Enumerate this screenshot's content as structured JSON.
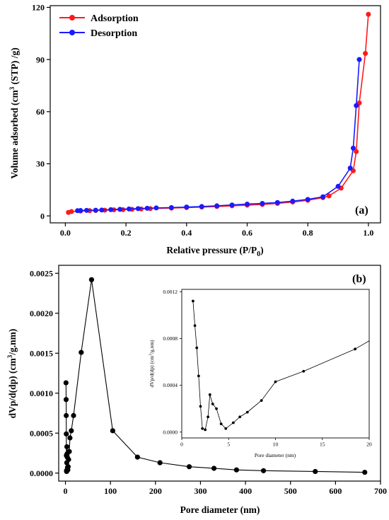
{
  "colors": {
    "adsorption": "#ff1a1a",
    "desorption": "#1a1aff",
    "psd": "#000000"
  },
  "chart_data": [
    {
      "type": "line",
      "panel_label": "(a)",
      "xlabel": "Relative pressure (P/P",
      "xlabel_sub": "0",
      "xlabel_end": ")",
      "ylabel_pre": "Volume adsorbed (cm",
      "ylabel_sup": "3",
      "ylabel_post": " (STP) /g)",
      "xlim": [
        -0.05,
        1.04
      ],
      "ylim": [
        -4,
        121
      ],
      "xticks": [
        0.0,
        0.2,
        0.4,
        0.6,
        0.8,
        1.0
      ],
      "xtick_labels": [
        "0.0",
        "0.2",
        "0.4",
        "0.6",
        "0.8",
        "1.0"
      ],
      "yticks": [
        0,
        30,
        60,
        90,
        120
      ],
      "ytick_labels": [
        "0",
        "30",
        "60",
        "90",
        "120"
      ],
      "legend": "top-left",
      "series": [
        {
          "name": "Adsorption",
          "color": "#ff1a1a",
          "x": [
            0.01,
            0.02,
            0.05,
            0.08,
            0.1,
            0.13,
            0.16,
            0.19,
            0.22,
            0.25,
            0.28,
            0.35,
            0.4,
            0.45,
            0.5,
            0.55,
            0.6,
            0.65,
            0.7,
            0.75,
            0.8,
            0.85,
            0.87,
            0.91,
            0.95,
            0.96,
            0.97,
            0.99,
            1.0
          ],
          "y": [
            2.0,
            2.5,
            2.8,
            3.0,
            3.1,
            3.3,
            3.5,
            3.6,
            3.8,
            4.0,
            4.2,
            4.5,
            4.8,
            5.1,
            5.4,
            5.8,
            6.2,
            6.6,
            7.2,
            8.0,
            9.0,
            10.5,
            11.5,
            16.0,
            26.0,
            37.0,
            65.0,
            93.5,
            116.0
          ]
        },
        {
          "name": "Desorption",
          "color": "#1a1aff",
          "x": [
            0.97,
            0.96,
            0.95,
            0.94,
            0.9,
            0.85,
            0.8,
            0.75,
            0.7,
            0.65,
            0.6,
            0.55,
            0.5,
            0.45,
            0.4,
            0.35,
            0.3,
            0.27,
            0.24,
            0.21,
            0.18,
            0.15,
            0.12,
            0.1,
            0.07,
            0.05,
            0.04
          ],
          "y": [
            90.0,
            63.5,
            39.0,
            27.5,
            17.0,
            11.0,
            9.5,
            8.5,
            7.7,
            7.2,
            6.8,
            6.3,
            5.8,
            5.4,
            5.1,
            4.8,
            4.6,
            4.4,
            4.2,
            4.0,
            3.8,
            3.6,
            3.4,
            3.3,
            3.2,
            3.1,
            3.0
          ]
        }
      ]
    },
    {
      "type": "line",
      "panel_label": "(b)",
      "xlabel": "Pore diameter (nm)",
      "ylabel_pre": "dVp/d(dp) (cm",
      "ylabel_sup": "3",
      "ylabel_post": "/g.nm)",
      "xlim": [
        -15,
        700
      ],
      "ylim": [
        -0.0001,
        0.0026
      ],
      "xticks": [
        0,
        100,
        200,
        300,
        400,
        500,
        600,
        700
      ],
      "xtick_labels": [
        "0",
        "100",
        "200",
        "300",
        "400",
        "500",
        "600",
        "700"
      ],
      "yticks": [
        0.0,
        0.0005,
        0.001,
        0.0015,
        0.002,
        0.0025
      ],
      "ytick_labels": [
        "0.0000",
        "0.0005",
        "0.0010",
        "0.0015",
        "0.0020",
        "0.0025"
      ],
      "series": [
        {
          "color": "#000000",
          "x": [
            1.2,
            1.5,
            1.7,
            1.9,
            2.1,
            2.3,
            2.6,
            2.9,
            3.2,
            3.5,
            4.0,
            4.5,
            5.2,
            6.0,
            7.0,
            8.5,
            10.0,
            13.0,
            18.0,
            35.0,
            58.0,
            105.0,
            160.0,
            210.0,
            275.0,
            330.0,
            380.0,
            440.0,
            555.0,
            665.0
          ],
          "y": [
            0.00113,
            0.00092,
            0.00072,
            0.00049,
            0.00022,
            3e-05,
            2e-05,
            0.00013,
            0.00033,
            0.00024,
            0.0002,
            7e-05,
            4e-05,
            8e-05,
            0.00017,
            0.00027,
            0.00044,
            0.00053,
            0.00072,
            0.00151,
            0.00242,
            0.00053,
            0.0002,
            0.00013,
            8e-05,
            6e-05,
            4e-05,
            3e-05,
            2e-05,
            1e-05
          ]
        }
      ]
    },
    {
      "type": "line",
      "role": "inset",
      "xlabel": "Pore diameter (nm)",
      "ylabel_pre": "dVp/d(dp) (cm",
      "ylabel_sup": "3",
      "ylabel_post": "/g.nm)",
      "xlim": [
        0,
        20
      ],
      "ylim": [
        -5e-05,
        0.00122
      ],
      "xticks": [
        0,
        5,
        10,
        15,
        20
      ],
      "xtick_labels": [
        "0",
        "5",
        "10",
        "15",
        "20"
      ],
      "yticks": [
        0.0,
        0.0004,
        0.0008,
        0.0012
      ],
      "ytick_labels": [
        "0.0000",
        "0.0004",
        "0.0008",
        "0.0012"
      ],
      "series": [
        {
          "color": "#000000",
          "x": [
            1.2,
            1.4,
            1.6,
            1.8,
            2.0,
            2.2,
            2.5,
            2.8,
            3.0,
            3.3,
            3.7,
            4.2,
            4.7,
            5.5,
            6.2,
            7.0,
            8.5,
            10.0,
            13.0,
            18.5,
            20.0
          ],
          "y": [
            0.00112,
            0.00091,
            0.00072,
            0.00048,
            0.00022,
            3e-05,
            2e-05,
            0.00013,
            0.00032,
            0.00024,
            0.0002,
            7e-05,
            3e-05,
            8e-05,
            0.00013,
            0.00017,
            0.00027,
            0.00043,
            0.00052,
            0.00071,
            0.00078
          ]
        }
      ]
    }
  ]
}
